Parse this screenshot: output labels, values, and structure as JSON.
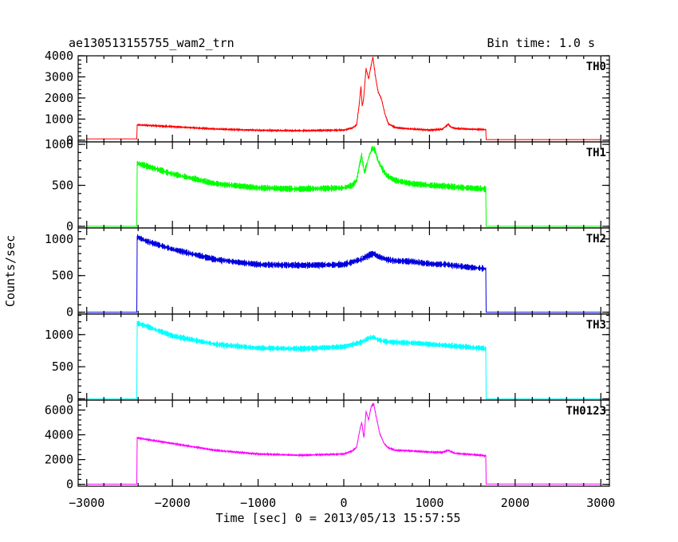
{
  "chart_data": {
    "type": "line",
    "title": "ae130513155755_wam2_trn",
    "bin_time": "Bin time: 1.0 s",
    "xlabel": "Time [sec] 0 = 2013/05/13 15:57:55",
    "ylabel": "Counts/sec",
    "xlim": [
      -3100,
      3100
    ],
    "xticks": [
      -3000,
      -2000,
      -1000,
      0,
      1000,
      2000,
      3000
    ],
    "xtick_labels": [
      "−3000",
      "−2000",
      "−1000",
      "0",
      "1000",
      "2000",
      "3000"
    ],
    "grid": false,
    "panels": [
      {
        "name": "TH0",
        "color": "#ff0000",
        "ylim": [
          -80,
          4000
        ],
        "yticks": [
          0,
          1000,
          2000,
          3000,
          4000
        ],
        "ytick_labels": [
          "0",
          "1000",
          "2000",
          "3000",
          "4000"
        ],
        "x": [
          -3000,
          -2415,
          -2414,
          -2000,
          -1500,
          -1000,
          -500,
          0,
          100,
          150,
          180,
          200,
          215,
          230,
          260,
          290,
          310,
          340,
          370,
          400,
          440,
          480,
          520,
          600,
          700,
          800,
          1000,
          1150,
          1220,
          1250,
          1300,
          1400,
          1500,
          1600,
          1660,
          1661,
          1700,
          2000,
          2500,
          3000
        ],
        "values": [
          60,
          60,
          730,
          640,
          530,
          470,
          450,
          480,
          580,
          720,
          1700,
          2550,
          1600,
          1900,
          3400,
          2900,
          3350,
          3950,
          3000,
          2300,
          1950,
          1250,
          780,
          600,
          560,
          530,
          480,
          520,
          760,
          620,
          560,
          540,
          520,
          510,
          500,
          30,
          30,
          30,
          30,
          30
        ],
        "noise": 40
      },
      {
        "name": "TH1",
        "color": "#00ff00",
        "ylim": [
          -20,
          1030
        ],
        "yticks": [
          0,
          500,
          1000
        ],
        "ytick_labels": [
          "0",
          "500",
          "1000"
        ],
        "x": [
          -3000,
          -2415,
          -2414,
          -2000,
          -1500,
          -1000,
          -500,
          0,
          100,
          150,
          190,
          210,
          240,
          300,
          330,
          360,
          400,
          450,
          500,
          600,
          800,
          1000,
          1200,
          1400,
          1600,
          1660,
          1661,
          2000,
          3000
        ],
        "values": [
          0,
          0,
          770,
          640,
          520,
          470,
          455,
          470,
          500,
          560,
          780,
          860,
          650,
          870,
          950,
          940,
          800,
          700,
          620,
          560,
          520,
          500,
          490,
          470,
          460,
          450,
          0,
          0,
          0
        ],
        "noise": 40
      },
      {
        "name": "TH2",
        "color": "#0000dd",
        "ylim": [
          -25,
          1150
        ],
        "yticks": [
          0,
          500,
          1000
        ],
        "ytick_labels": [
          "0",
          "500",
          "1000"
        ],
        "x": [
          -3000,
          -2415,
          -2414,
          -2300,
          -2000,
          -1500,
          -1000,
          -500,
          0,
          200,
          300,
          350,
          400,
          500,
          600,
          800,
          1000,
          1200,
          1400,
          1600,
          1660,
          1661,
          2000,
          3000
        ],
        "values": [
          0,
          0,
          1030,
          970,
          860,
          720,
          650,
          640,
          650,
          720,
          780,
          800,
          760,
          720,
          700,
          690,
          660,
          650,
          620,
          600,
          590,
          0,
          0,
          0
        ],
        "noise": 45
      },
      {
        "name": "TH3",
        "color": "#00ffff",
        "ylim": [
          -20,
          1320
        ],
        "yticks": [
          0,
          500,
          1000
        ],
        "ytick_labels": [
          "0",
          "500",
          "1000"
        ],
        "x": [
          -3000,
          -2415,
          -2414,
          -2300,
          -2000,
          -1500,
          -1000,
          -500,
          0,
          200,
          300,
          350,
          400,
          500,
          600,
          800,
          1000,
          1200,
          1400,
          1600,
          1660,
          1661,
          2000,
          3000
        ],
        "values": [
          0,
          0,
          1180,
          1130,
          980,
          850,
          790,
          780,
          810,
          880,
          950,
          960,
          920,
          890,
          880,
          870,
          850,
          830,
          810,
          790,
          780,
          0,
          0,
          0
        ],
        "noise": 45
      },
      {
        "name": "TH0123",
        "color": "#ff00ff",
        "ylim": [
          -150,
          6800
        ],
        "yticks": [
          0,
          2000,
          4000,
          6000
        ],
        "ytick_labels": [
          "0",
          "2000",
          "4000",
          "6000"
        ],
        "x": [
          -3000,
          -2415,
          -2414,
          -2000,
          -1500,
          -1000,
          -500,
          0,
          100,
          150,
          190,
          210,
          235,
          260,
          290,
          320,
          350,
          380,
          420,
          470,
          520,
          600,
          800,
          1000,
          1150,
          1220,
          1250,
          1300,
          1400,
          1500,
          1600,
          1660,
          1661,
          2000,
          3000
        ],
        "values": [
          20,
          20,
          3750,
          3300,
          2750,
          2450,
          2350,
          2450,
          2700,
          3000,
          4500,
          5000,
          3700,
          5900,
          5200,
          6300,
          6500,
          5400,
          4100,
          3300,
          2950,
          2750,
          2700,
          2600,
          2580,
          2750,
          2650,
          2500,
          2450,
          2400,
          2350,
          2300,
          30,
          30,
          30
        ],
        "noise": 60
      }
    ]
  }
}
